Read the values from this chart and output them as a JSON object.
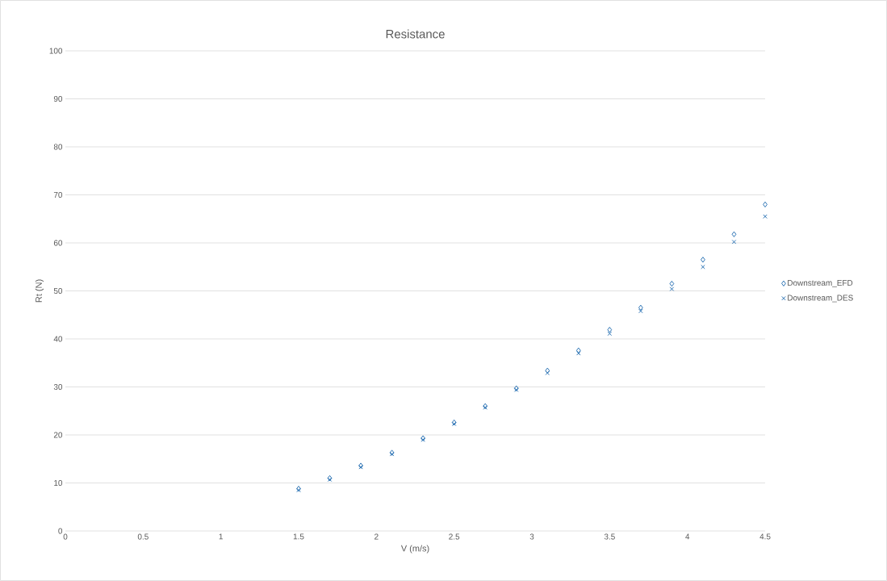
{
  "chart_data": {
    "type": "scatter",
    "title": "Resistance",
    "xlabel": "V (m/s)",
    "ylabel": "Rt (N)",
    "x": [
      1.5,
      1.7,
      1.9,
      2.1,
      2.3,
      2.5,
      2.7,
      2.9,
      3.1,
      3.3,
      3.5,
      3.7,
      3.9,
      4.1,
      4.3,
      4.5
    ],
    "series": [
      {
        "name": "Downstream_EFD",
        "color": "#2e75b6",
        "marker": "diamond",
        "values": [
          8.8,
          11,
          13.6,
          16.3,
          19.3,
          22.6,
          26,
          29.7,
          33.4,
          37.6,
          41.9,
          46.5,
          51.5,
          56.5,
          61.8,
          68
        ]
      },
      {
        "name": "Downstream_DES",
        "color": "#2e75b6",
        "marker": "cross",
        "values": [
          8.5,
          10.7,
          13.3,
          16,
          19,
          22.3,
          25.7,
          29.4,
          32.9,
          37,
          41.1,
          45.8,
          50.4,
          55,
          60.2,
          65.5
        ]
      }
    ],
    "xlim": [
      0,
      4.5
    ],
    "ylim": [
      0,
      100
    ],
    "xticks": [
      0,
      0.5,
      1,
      1.5,
      2,
      2.5,
      3,
      3.5,
      4,
      4.5
    ],
    "yticks": [
      0,
      10,
      20,
      30,
      40,
      50,
      60,
      70,
      80,
      90,
      100
    ],
    "grid": "y",
    "legend": "right"
  }
}
